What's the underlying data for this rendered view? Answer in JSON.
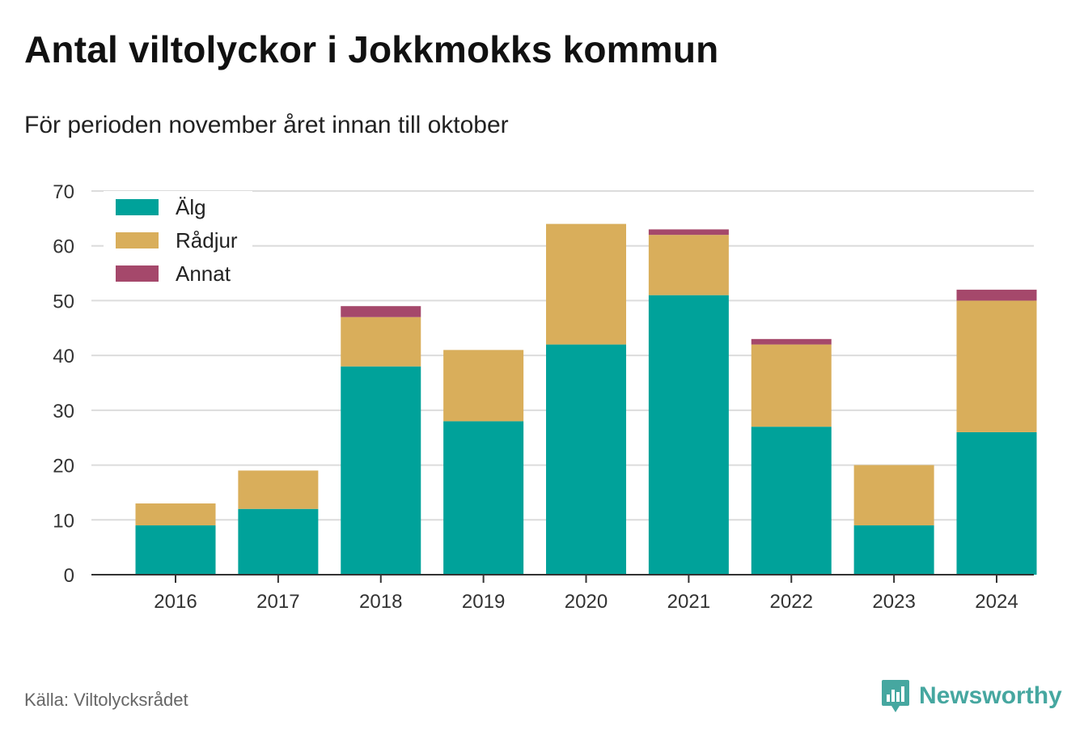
{
  "header": {
    "title": "Antal viltolyckor i Jokkmokks kommun",
    "subtitle": "För perioden november året innan till oktober"
  },
  "footer": {
    "source": "Källa: Viltolycksrådet",
    "brand": "Newsworthy",
    "brand_icon": "chart-bubble-icon"
  },
  "colors": {
    "alg": "#00a29a",
    "radjur": "#d9ae5b",
    "annat": "#a5486b",
    "brand": "#46a7a0"
  },
  "chart_data": {
    "type": "bar",
    "stacked": true,
    "categories": [
      "2016",
      "2017",
      "2018",
      "2019",
      "2020",
      "2021",
      "2022",
      "2023",
      "2024"
    ],
    "series": [
      {
        "name": "Älg",
        "color": "#00a29a",
        "values": [
          9,
          12,
          38,
          28,
          42,
          51,
          27,
          9,
          26
        ]
      },
      {
        "name": "Rådjur",
        "color": "#d9ae5b",
        "values": [
          4,
          7,
          9,
          13,
          22,
          11,
          15,
          11,
          24
        ]
      },
      {
        "name": "Annat",
        "color": "#a5486b",
        "values": [
          0,
          0,
          2,
          0,
          0,
          1,
          1,
          0,
          2
        ]
      }
    ],
    "ylim": [
      0,
      70
    ],
    "yticks": [
      0,
      10,
      20,
      30,
      40,
      50,
      60,
      70
    ],
    "grid": true,
    "legend": "top-left"
  }
}
